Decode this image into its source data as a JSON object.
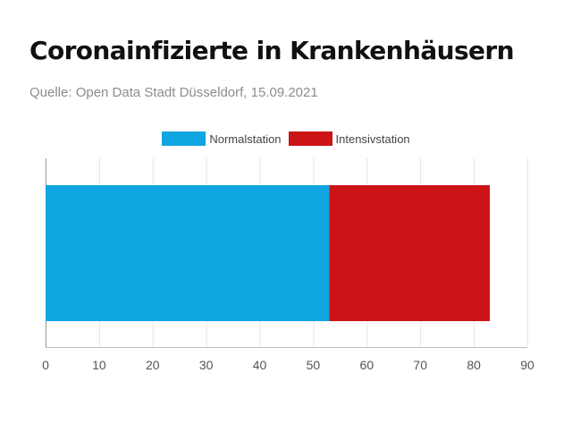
{
  "title": "Coronainfizierte in Krankenhäusern",
  "source": "Quelle: Open Data Stadt Düsseldorf, 15.09.2021",
  "chart_data": {
    "type": "bar",
    "orientation": "horizontal",
    "stacked": true,
    "categories": [
      ""
    ],
    "series": [
      {
        "name": "Normalstation",
        "color": "#0ea5e0",
        "values": [
          53
        ]
      },
      {
        "name": "Intensivstation",
        "color": "#cc1417",
        "values": [
          30
        ]
      }
    ],
    "xlim": [
      0,
      90
    ],
    "xticks": [
      0,
      10,
      20,
      30,
      40,
      50,
      60,
      70,
      80,
      90
    ],
    "grid": true,
    "legend": "top-center"
  }
}
